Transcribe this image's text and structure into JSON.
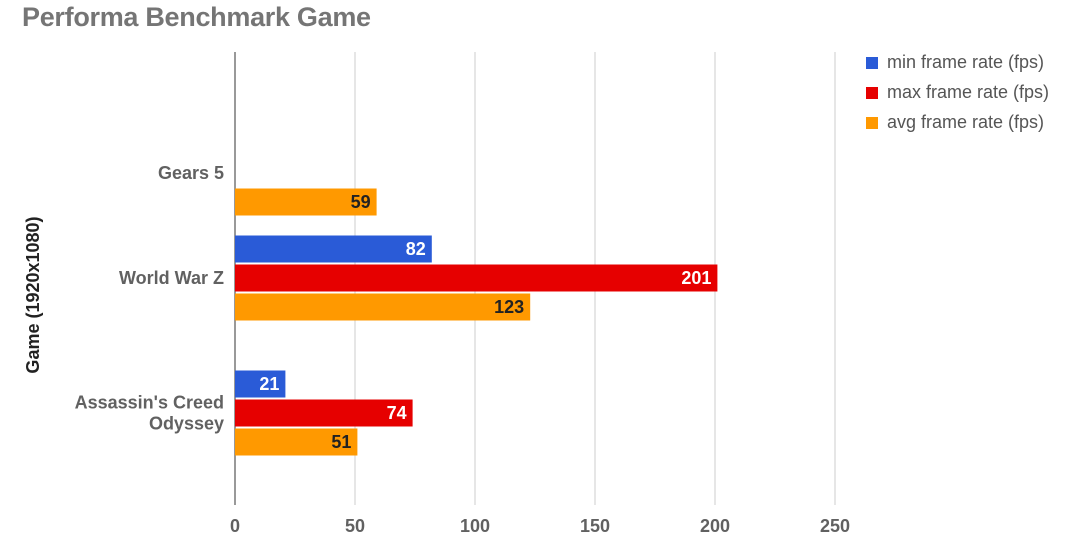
{
  "chart_data": {
    "type": "bar",
    "orientation": "horizontal",
    "title": "Performa Benchmark Game",
    "ylabel": "Game (1920x1080)",
    "xlabel": "",
    "categories": [
      "Gears 5",
      "World War Z",
      "Assassin's Creed Odyssey"
    ],
    "category_lines": [
      [
        "Gears 5"
      ],
      [
        "World War Z"
      ],
      [
        "Assassin's Creed",
        "Odyssey"
      ]
    ],
    "series": [
      {
        "name": "min frame rate (fps)",
        "color": "#2a5bd7",
        "label_color": "#ffffff",
        "values": [
          null,
          82,
          21
        ]
      },
      {
        "name": "max frame rate (fps)",
        "color": "#e60000",
        "label_color": "#ffffff",
        "values": [
          null,
          201,
          74
        ]
      },
      {
        "name": "avg frame rate (fps)",
        "color": "#ff9900",
        "label_color": "#222222",
        "values": [
          59,
          123,
          51
        ]
      }
    ],
    "xlim": [
      0,
      250
    ],
    "xticks": [
      0,
      50,
      100,
      150,
      200,
      250
    ],
    "grid": true,
    "legend_position": "top-right"
  }
}
